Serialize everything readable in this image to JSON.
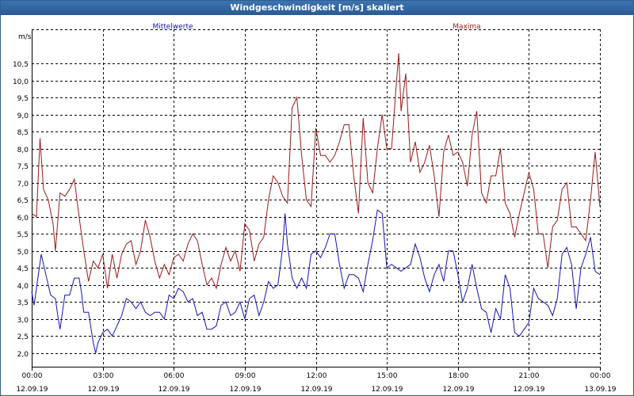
{
  "window": {
    "title": "Windgeschwindigkeit [m/s] skaliert"
  },
  "colors": {
    "mean": "#1414b4",
    "max": "#9b1a1a",
    "grid": "#000000",
    "title_bar": "#2f6aa6"
  },
  "chart_data": {
    "type": "line",
    "title": "Windgeschwindigkeit [m/s] skaliert",
    "ylabel": "m/s",
    "ylim": [
      1.6,
      11.5
    ],
    "xlim": [
      0,
      24
    ],
    "grid": true,
    "x_ticks": [
      {
        "hour": 0,
        "time": "00:00",
        "date": "12.09.19"
      },
      {
        "hour": 3,
        "time": "03:00",
        "date": "12.09.19"
      },
      {
        "hour": 6,
        "time": "06:00",
        "date": "12.09.19"
      },
      {
        "hour": 9,
        "time": "09:00",
        "date": "12.09.19"
      },
      {
        "hour": 12,
        "time": "12:00",
        "date": "12.09.19"
      },
      {
        "hour": 15,
        "time": "15:00",
        "date": "12.09.19"
      },
      {
        "hour": 18,
        "time": "18:00",
        "date": "12.09.19"
      },
      {
        "hour": 21,
        "time": "21:00",
        "date": "12.09.19"
      },
      {
        "hour": 24,
        "time": "00:00",
        "date": "13.09.19"
      }
    ],
    "y_ticks": [
      "2,0",
      "2,5",
      "3,0",
      "3,5",
      "4,0",
      "4,5",
      "5,0",
      "5,5",
      "6,0",
      "6,5",
      "7,0",
      "7,5",
      "8,0",
      "8,5",
      "9,0",
      "9,5",
      "10,0",
      "10,5"
    ],
    "y_tick_values": [
      2.0,
      2.5,
      3.0,
      3.5,
      4.0,
      4.5,
      5.0,
      5.5,
      6.0,
      6.5,
      7.0,
      7.5,
      8.0,
      8.5,
      9.0,
      9.5,
      10.0,
      10.5
    ],
    "series": [
      {
        "name": "Mittelwerte",
        "values": [
          [
            0.0,
            3.8
          ],
          [
            0.1,
            3.4
          ],
          [
            0.2,
            3.9
          ],
          [
            0.4,
            4.9
          ],
          [
            0.6,
            4.3
          ],
          [
            0.8,
            3.7
          ],
          [
            1.0,
            3.6
          ],
          [
            1.1,
            3.1
          ],
          [
            1.2,
            2.7
          ],
          [
            1.3,
            3.2
          ],
          [
            1.4,
            3.7
          ],
          [
            1.6,
            3.7
          ],
          [
            1.8,
            4.2
          ],
          [
            2.0,
            4.2
          ],
          [
            2.1,
            3.8
          ],
          [
            2.2,
            3.2
          ],
          [
            2.4,
            3.2
          ],
          [
            2.6,
            2.3
          ],
          [
            2.7,
            2.0
          ],
          [
            2.8,
            2.3
          ],
          [
            3.0,
            2.6
          ],
          [
            3.2,
            2.7
          ],
          [
            3.4,
            2.5
          ],
          [
            3.6,
            2.8
          ],
          [
            3.8,
            3.1
          ],
          [
            4.0,
            3.6
          ],
          [
            4.2,
            3.5
          ],
          [
            4.4,
            3.3
          ],
          [
            4.6,
            3.5
          ],
          [
            4.8,
            3.2
          ],
          [
            5.0,
            3.1
          ],
          [
            5.2,
            3.2
          ],
          [
            5.4,
            3.2
          ],
          [
            5.6,
            3.0
          ],
          [
            5.8,
            3.7
          ],
          [
            6.0,
            3.6
          ],
          [
            6.2,
            3.9
          ],
          [
            6.4,
            3.8
          ],
          [
            6.6,
            3.5
          ],
          [
            6.8,
            3.6
          ],
          [
            7.0,
            3.1
          ],
          [
            7.2,
            3.2
          ],
          [
            7.4,
            2.7
          ],
          [
            7.6,
            2.7
          ],
          [
            7.8,
            2.8
          ],
          [
            8.0,
            3.4
          ],
          [
            8.2,
            3.5
          ],
          [
            8.4,
            3.1
          ],
          [
            8.6,
            3.2
          ],
          [
            8.8,
            3.5
          ],
          [
            9.0,
            3.0
          ],
          [
            9.2,
            3.6
          ],
          [
            9.4,
            3.7
          ],
          [
            9.6,
            3.1
          ],
          [
            9.8,
            3.5
          ],
          [
            10.0,
            4.1
          ],
          [
            10.2,
            3.9
          ],
          [
            10.4,
            4.0
          ],
          [
            10.6,
            5.1
          ],
          [
            10.7,
            6.1
          ],
          [
            10.8,
            5.2
          ],
          [
            11.0,
            4.2
          ],
          [
            11.2,
            3.9
          ],
          [
            11.4,
            4.2
          ],
          [
            11.6,
            3.9
          ],
          [
            11.8,
            4.9
          ],
          [
            12.0,
            5.0
          ],
          [
            12.2,
            4.8
          ],
          [
            12.4,
            5.1
          ],
          [
            12.6,
            5.5
          ],
          [
            12.8,
            5.5
          ],
          [
            13.0,
            4.6
          ],
          [
            13.2,
            3.9
          ],
          [
            13.4,
            4.3
          ],
          [
            13.6,
            4.3
          ],
          [
            13.8,
            4.2
          ],
          [
            14.0,
            3.8
          ],
          [
            14.2,
            4.6
          ],
          [
            14.4,
            5.3
          ],
          [
            14.6,
            6.2
          ],
          [
            14.8,
            6.1
          ],
          [
            15.0,
            4.5
          ],
          [
            15.2,
            4.6
          ],
          [
            15.4,
            4.5
          ],
          [
            15.6,
            4.4
          ],
          [
            15.8,
            4.5
          ],
          [
            16.0,
            4.6
          ],
          [
            16.2,
            5.2
          ],
          [
            16.4,
            4.8
          ],
          [
            16.6,
            4.2
          ],
          [
            16.8,
            3.8
          ],
          [
            17.0,
            4.3
          ],
          [
            17.2,
            4.6
          ],
          [
            17.4,
            4.1
          ],
          [
            17.6,
            5.0
          ],
          [
            17.8,
            5.0
          ],
          [
            18.0,
            4.3
          ],
          [
            18.2,
            3.5
          ],
          [
            18.4,
            3.9
          ],
          [
            18.6,
            4.6
          ],
          [
            18.8,
            3.9
          ],
          [
            19.0,
            3.3
          ],
          [
            19.2,
            3.2
          ],
          [
            19.4,
            2.6
          ],
          [
            19.6,
            3.3
          ],
          [
            19.8,
            3.0
          ],
          [
            20.0,
            4.3
          ],
          [
            20.2,
            3.9
          ],
          [
            20.4,
            2.6
          ],
          [
            20.6,
            2.5
          ],
          [
            20.8,
            2.7
          ],
          [
            21.0,
            2.9
          ],
          [
            21.2,
            3.9
          ],
          [
            21.4,
            3.6
          ],
          [
            21.6,
            3.5
          ],
          [
            21.8,
            3.4
          ],
          [
            22.0,
            3.1
          ],
          [
            22.2,
            3.6
          ],
          [
            22.4,
            4.9
          ],
          [
            22.6,
            5.1
          ],
          [
            22.8,
            4.6
          ],
          [
            23.0,
            3.3
          ],
          [
            23.2,
            4.5
          ],
          [
            23.4,
            4.9
          ],
          [
            23.6,
            5.4
          ],
          [
            23.8,
            4.4
          ],
          [
            24.0,
            4.3
          ]
        ]
      },
      {
        "name": "Maxima",
        "values": [
          [
            0.0,
            6.1
          ],
          [
            0.2,
            6.0
          ],
          [
            0.35,
            8.3
          ],
          [
            0.5,
            6.8
          ],
          [
            0.7,
            6.5
          ],
          [
            0.9,
            5.8
          ],
          [
            1.0,
            5.0
          ],
          [
            1.2,
            6.7
          ],
          [
            1.4,
            6.6
          ],
          [
            1.6,
            6.8
          ],
          [
            1.8,
            7.1
          ],
          [
            2.0,
            6.0
          ],
          [
            2.2,
            5.0
          ],
          [
            2.4,
            4.1
          ],
          [
            2.6,
            4.7
          ],
          [
            2.8,
            4.5
          ],
          [
            3.0,
            4.9
          ],
          [
            3.2,
            3.9
          ],
          [
            3.4,
            4.9
          ],
          [
            3.6,
            4.2
          ],
          [
            3.8,
            4.9
          ],
          [
            4.0,
            5.2
          ],
          [
            4.2,
            5.3
          ],
          [
            4.4,
            4.6
          ],
          [
            4.6,
            5.0
          ],
          [
            4.8,
            5.9
          ],
          [
            5.0,
            5.4
          ],
          [
            5.2,
            4.7
          ],
          [
            5.4,
            4.2
          ],
          [
            5.6,
            4.6
          ],
          [
            5.8,
            4.3
          ],
          [
            6.0,
            4.8
          ],
          [
            6.2,
            4.9
          ],
          [
            6.4,
            4.7
          ],
          [
            6.6,
            5.2
          ],
          [
            6.8,
            5.5
          ],
          [
            7.0,
            5.3
          ],
          [
            7.2,
            4.6
          ],
          [
            7.4,
            4.0
          ],
          [
            7.6,
            4.2
          ],
          [
            7.8,
            3.9
          ],
          [
            8.0,
            4.6
          ],
          [
            8.2,
            5.1
          ],
          [
            8.4,
            4.7
          ],
          [
            8.6,
            5.0
          ],
          [
            8.8,
            4.4
          ],
          [
            9.0,
            5.8
          ],
          [
            9.2,
            5.6
          ],
          [
            9.4,
            4.7
          ],
          [
            9.6,
            5.2
          ],
          [
            9.8,
            5.4
          ],
          [
            10.0,
            6.5
          ],
          [
            10.2,
            7.2
          ],
          [
            10.4,
            7.0
          ],
          [
            10.6,
            6.6
          ],
          [
            10.8,
            6.4
          ],
          [
            11.0,
            9.2
          ],
          [
            11.2,
            9.5
          ],
          [
            11.4,
            7.8
          ],
          [
            11.6,
            6.5
          ],
          [
            11.8,
            6.3
          ],
          [
            12.0,
            8.6
          ],
          [
            12.2,
            7.8
          ],
          [
            12.4,
            7.8
          ],
          [
            12.6,
            7.6
          ],
          [
            12.8,
            7.8
          ],
          [
            13.0,
            8.2
          ],
          [
            13.2,
            8.7
          ],
          [
            13.4,
            8.7
          ],
          [
            13.6,
            7.2
          ],
          [
            13.8,
            6.1
          ],
          [
            14.0,
            8.9
          ],
          [
            14.2,
            7.0
          ],
          [
            14.4,
            6.7
          ],
          [
            14.6,
            8.0
          ],
          [
            14.8,
            9.0
          ],
          [
            15.0,
            8.0
          ],
          [
            15.2,
            8.0
          ],
          [
            15.4,
            9.9
          ],
          [
            15.5,
            10.8
          ],
          [
            15.6,
            9.1
          ],
          [
            15.8,
            10.2
          ],
          [
            16.0,
            7.6
          ],
          [
            16.2,
            8.2
          ],
          [
            16.4,
            7.3
          ],
          [
            16.6,
            7.6
          ],
          [
            16.8,
            8.1
          ],
          [
            17.0,
            7.2
          ],
          [
            17.2,
            6.0
          ],
          [
            17.4,
            7.9
          ],
          [
            17.6,
            8.4
          ],
          [
            17.8,
            7.8
          ],
          [
            18.0,
            7.9
          ],
          [
            18.2,
            7.6
          ],
          [
            18.4,
            6.9
          ],
          [
            18.6,
            8.4
          ],
          [
            18.8,
            9.1
          ],
          [
            19.0,
            6.7
          ],
          [
            19.2,
            6.4
          ],
          [
            19.4,
            7.2
          ],
          [
            19.6,
            7.2
          ],
          [
            19.8,
            8.0
          ],
          [
            20.0,
            6.4
          ],
          [
            20.2,
            6.1
          ],
          [
            20.4,
            5.4
          ],
          [
            20.6,
            6.1
          ],
          [
            20.8,
            6.7
          ],
          [
            21.0,
            7.3
          ],
          [
            21.2,
            6.8
          ],
          [
            21.4,
            5.5
          ],
          [
            21.6,
            5.5
          ],
          [
            21.8,
            4.5
          ],
          [
            22.0,
            5.7
          ],
          [
            22.2,
            5.9
          ],
          [
            22.4,
            6.8
          ],
          [
            22.6,
            7.0
          ],
          [
            22.8,
            5.7
          ],
          [
            23.0,
            5.7
          ],
          [
            23.2,
            5.5
          ],
          [
            23.4,
            5.3
          ],
          [
            23.6,
            6.5
          ],
          [
            23.8,
            7.9
          ],
          [
            24.0,
            6.3
          ]
        ]
      }
    ]
  }
}
